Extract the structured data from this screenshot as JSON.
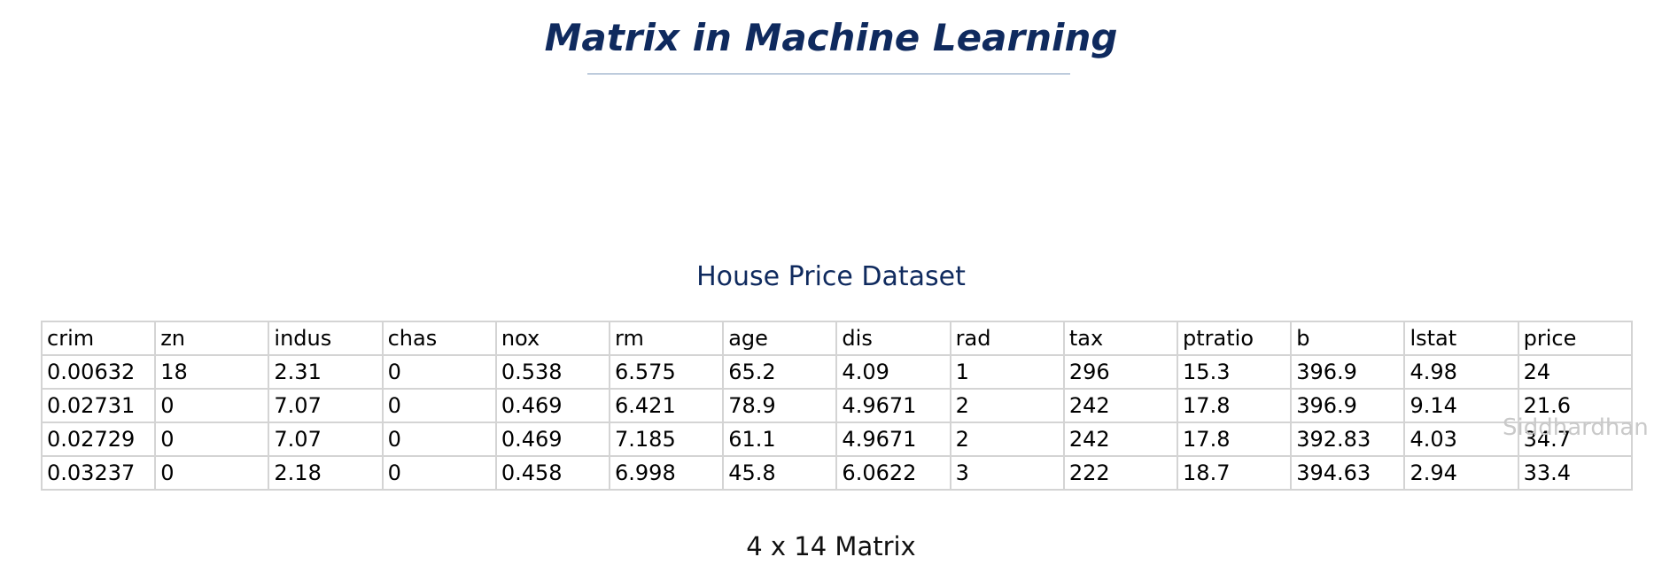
{
  "title": "Matrix in Machine Learning",
  "subtitle": "House Price Dataset",
  "table": {
    "headers": [
      "crim",
      "zn",
      "indus",
      "chas",
      "nox",
      "rm",
      "age",
      "dis",
      "rad",
      "tax",
      "ptratio",
      "b",
      "lstat",
      "price"
    ],
    "rows": [
      [
        "0.00632",
        "18",
        "2.31",
        "0",
        "0.538",
        "6.575",
        "65.2",
        "4.09",
        "1",
        "296",
        "15.3",
        "396.9",
        "4.98",
        "24"
      ],
      [
        "0.02731",
        "0",
        "7.07",
        "0",
        "0.469",
        "6.421",
        "78.9",
        "4.9671",
        "2",
        "242",
        "17.8",
        "396.9",
        "9.14",
        "21.6"
      ],
      [
        "0.02729",
        "0",
        "7.07",
        "0",
        "0.469",
        "7.185",
        "61.1",
        "4.9671",
        "2",
        "242",
        "17.8",
        "392.83",
        "4.03",
        "34.7"
      ],
      [
        "0.03237",
        "0",
        "2.18",
        "0",
        "0.458",
        "6.998",
        "45.8",
        "6.0622",
        "3",
        "222",
        "18.7",
        "394.63",
        "2.94",
        "33.4"
      ]
    ]
  },
  "caption": "4 x 14 Matrix",
  "watermark": "Siddhardhan"
}
